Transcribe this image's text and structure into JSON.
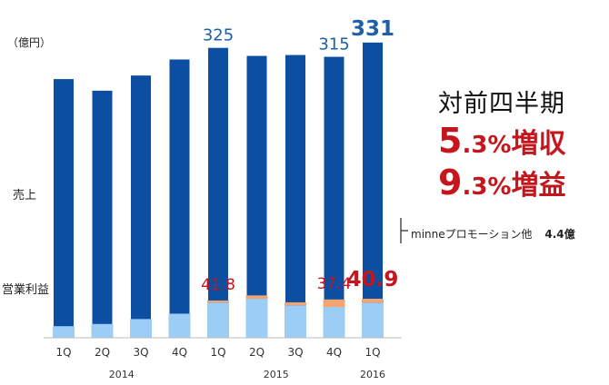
{
  "unit_label": "（億円）",
  "series_labels": {
    "sales": "売上",
    "operating_profit": "営業利益"
  },
  "headline": {
    "title": "対前四半期",
    "sales_growth_int": "5",
    "sales_growth_dec": ".3%",
    "sales_growth_word": "増収",
    "profit_growth_int": "9",
    "profit_growth_dec": ".3%",
    "profit_growth_word": "増益"
  },
  "minne_note": {
    "text": "minneプロモーション他",
    "value": "4.4億"
  },
  "colors": {
    "sales": "#0b4ea2",
    "profit": "#9bcdf7",
    "promotion": "#f4a46e",
    "sales_label": "#1f5fa8",
    "profit_label": "#c4161c"
  },
  "chart_data": {
    "type": "bar",
    "categories": [
      "1Q",
      "2Q",
      "3Q",
      "4Q",
      "1Q",
      "2Q",
      "3Q",
      "4Q",
      "1Q"
    ],
    "year_labels": [
      {
        "label": "2014",
        "start": 0,
        "end": 3
      },
      {
        "label": "2015",
        "start": 4,
        "end": 7
      },
      {
        "label": "2016",
        "start": 8,
        "end": 8
      }
    ],
    "ylim": [
      0,
      340
    ],
    "series": [
      {
        "name": "売上",
        "values": [
          290,
          277,
          294,
          312,
          325,
          316,
          317,
          315,
          331
        ]
      },
      {
        "name": "営業利益",
        "values": [
          13,
          15.5,
          21,
          27,
          39.5,
          43.8,
          36.3,
          34.6,
          39.4
        ]
      },
      {
        "name": "minneプロモーション他",
        "values": [
          0,
          0,
          0,
          0,
          2.3,
          3.7,
          3.5,
          8.4,
          4.4
        ]
      }
    ],
    "annotations": [
      {
        "index": 4,
        "series": "売上",
        "text": "325"
      },
      {
        "index": 7,
        "series": "売上",
        "text": "315"
      },
      {
        "index": 8,
        "series": "売上",
        "text": "331"
      },
      {
        "index": 4,
        "series": "営業利益",
        "text": "41.8"
      },
      {
        "index": 7,
        "series": "営業利益",
        "text": "37.4"
      },
      {
        "index": 8,
        "series": "営業利益",
        "text": "40.9"
      }
    ]
  }
}
